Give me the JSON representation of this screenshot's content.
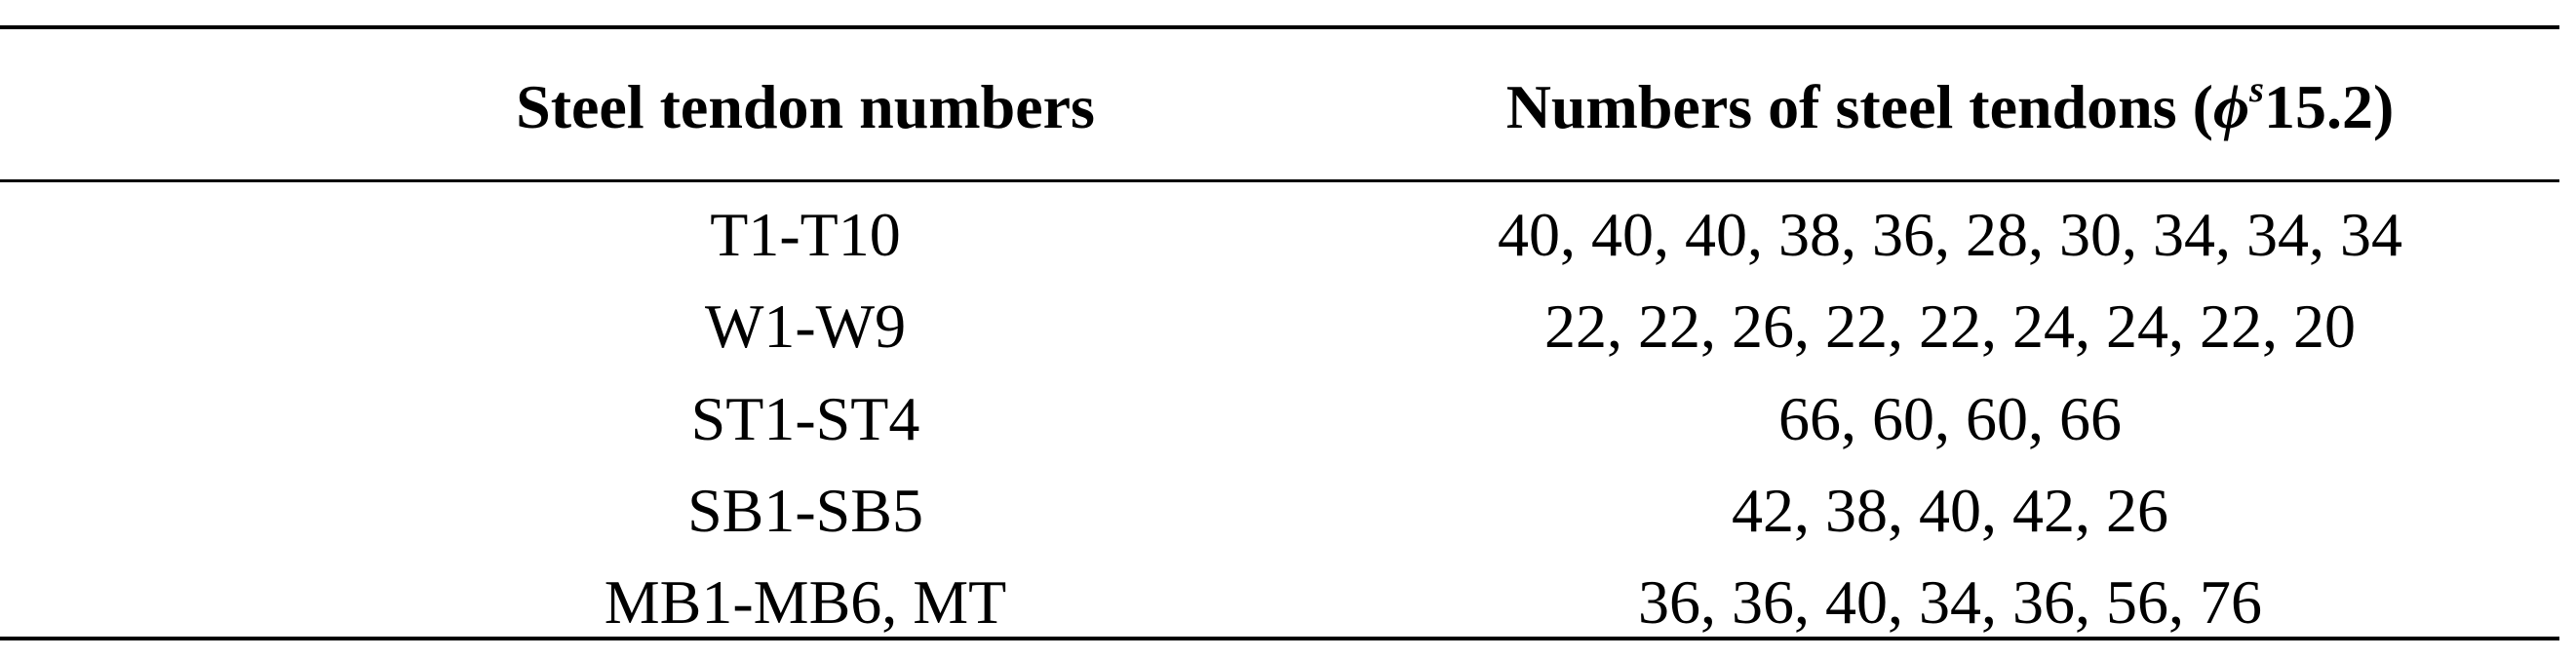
{
  "table": {
    "headers": {
      "col1": "Steel tendon numbers",
      "col2_prefix": "Numbers of steel tendons (",
      "col2_symbol": "ϕ",
      "col2_sup": "s",
      "col2_suffix": "15.2)"
    },
    "rows": [
      {
        "tendons": "T1-T10",
        "counts": "40, 40, 40, 38, 36, 28, 30, 34, 34, 34"
      },
      {
        "tendons": "W1-W9",
        "counts": "22, 22, 26, 22, 22, 24, 24, 22, 20"
      },
      {
        "tendons": "ST1-ST4",
        "counts": "66, 60, 60, 66"
      },
      {
        "tendons": "SB1-SB5",
        "counts": "42, 38, 40, 42, 26"
      },
      {
        "tendons": "MB1-MB6, MT",
        "counts": "36, 36, 40, 34, 36, 56, 76"
      }
    ]
  }
}
